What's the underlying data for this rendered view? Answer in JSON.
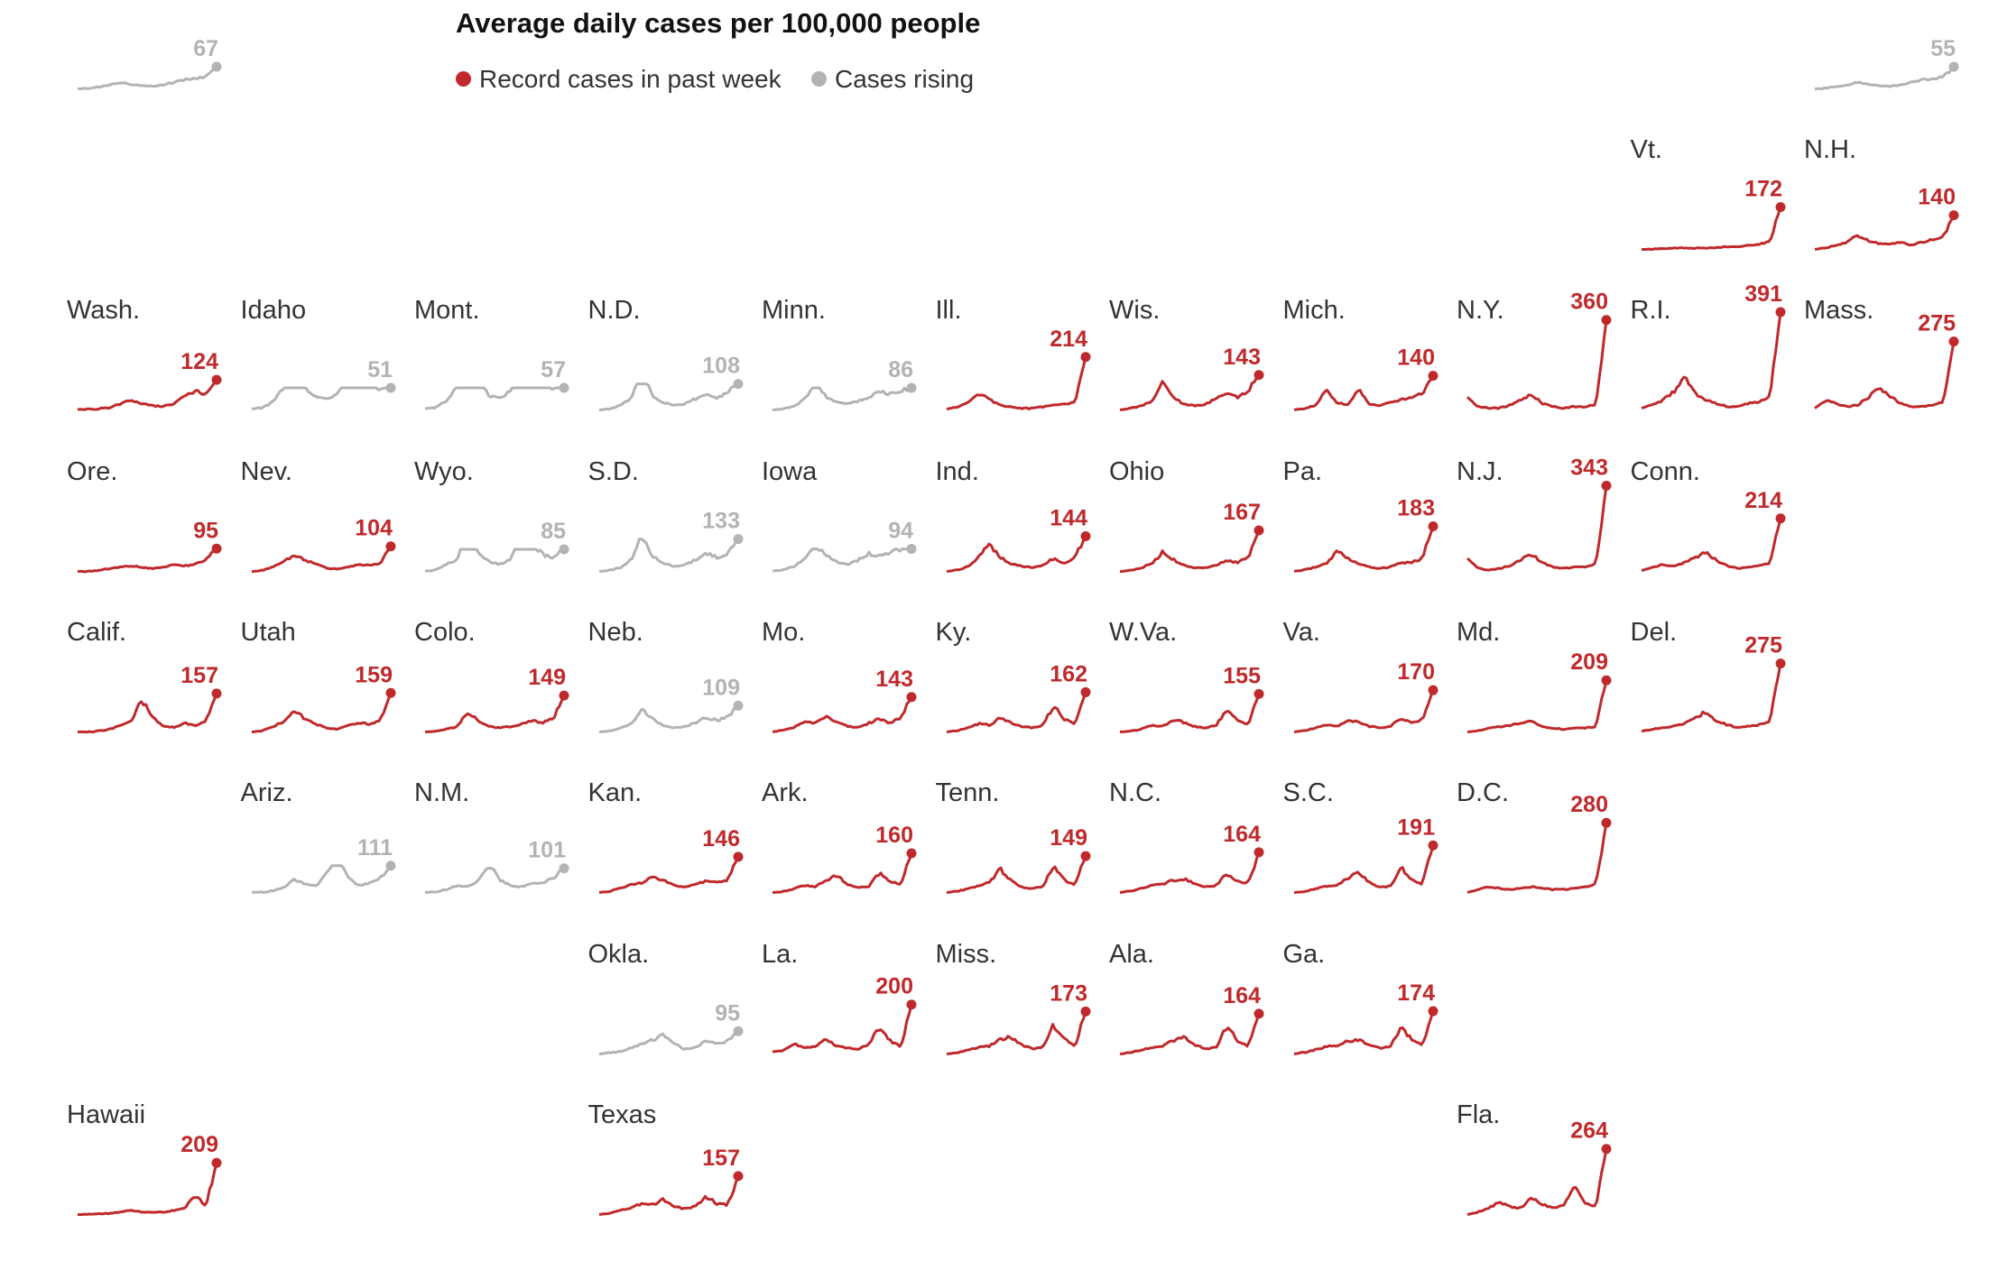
{
  "chart_data": {
    "type": "line",
    "title": "Average daily cases per 100,000 people",
    "legend": [
      {
        "key": "record",
        "label": "Record cases in past week",
        "color": "#c0292b"
      },
      {
        "key": "rising",
        "label": "Cases rising",
        "color": "#b3b3b3"
      }
    ],
    "legend_placement": "top",
    "layout": "tile-grid-map",
    "states": [
      {
        "name": "",
        "value": 67,
        "status": "rising",
        "col": 0,
        "row": 0
      },
      {
        "name": "",
        "value": 55,
        "status": "rising",
        "col": 10,
        "row": 0
      },
      {
        "name": "Vt.",
        "value": 172,
        "status": "record",
        "col": 9,
        "row": 1
      },
      {
        "name": "N.H.",
        "value": 140,
        "status": "record",
        "col": 10,
        "row": 1
      },
      {
        "name": "Wash.",
        "value": 124,
        "status": "record",
        "col": 0,
        "row": 2
      },
      {
        "name": "Idaho",
        "value": 51,
        "status": "rising",
        "col": 1,
        "row": 2
      },
      {
        "name": "Mont.",
        "value": 57,
        "status": "rising",
        "col": 2,
        "row": 2
      },
      {
        "name": "N.D.",
        "value": 108,
        "status": "rising",
        "col": 3,
        "row": 2
      },
      {
        "name": "Minn.",
        "value": 86,
        "status": "rising",
        "col": 4,
        "row": 2
      },
      {
        "name": "Ill.",
        "value": 214,
        "status": "record",
        "col": 5,
        "row": 2
      },
      {
        "name": "Wis.",
        "value": 143,
        "status": "record",
        "col": 6,
        "row": 2
      },
      {
        "name": "Mich.",
        "value": 140,
        "status": "record",
        "col": 7,
        "row": 2
      },
      {
        "name": "N.Y.",
        "value": 360,
        "status": "record",
        "col": 8,
        "row": 2
      },
      {
        "name": "R.I.",
        "value": 391,
        "status": "record",
        "col": 9,
        "row": 2
      },
      {
        "name": "Mass.",
        "value": 275,
        "status": "record",
        "col": 10,
        "row": 2
      },
      {
        "name": "Ore.",
        "value": 95,
        "status": "record",
        "col": 0,
        "row": 3
      },
      {
        "name": "Nev.",
        "value": 104,
        "status": "record",
        "col": 1,
        "row": 3
      },
      {
        "name": "Wyo.",
        "value": 85,
        "status": "rising",
        "col": 2,
        "row": 3
      },
      {
        "name": "S.D.",
        "value": 133,
        "status": "rising",
        "col": 3,
        "row": 3
      },
      {
        "name": "Iowa",
        "value": 94,
        "status": "rising",
        "col": 4,
        "row": 3
      },
      {
        "name": "Ind.",
        "value": 144,
        "status": "record",
        "col": 5,
        "row": 3
      },
      {
        "name": "Ohio",
        "value": 167,
        "status": "record",
        "col": 6,
        "row": 3
      },
      {
        "name": "Pa.",
        "value": 183,
        "status": "record",
        "col": 7,
        "row": 3
      },
      {
        "name": "N.J.",
        "value": 343,
        "status": "record",
        "col": 8,
        "row": 3
      },
      {
        "name": "Conn.",
        "value": 214,
        "status": "record",
        "col": 9,
        "row": 3
      },
      {
        "name": "Calif.",
        "value": 157,
        "status": "record",
        "col": 0,
        "row": 4
      },
      {
        "name": "Utah",
        "value": 159,
        "status": "record",
        "col": 1,
        "row": 4
      },
      {
        "name": "Colo.",
        "value": 149,
        "status": "record",
        "col": 2,
        "row": 4
      },
      {
        "name": "Neb.",
        "value": 109,
        "status": "rising",
        "col": 3,
        "row": 4
      },
      {
        "name": "Mo.",
        "value": 143,
        "status": "record",
        "col": 4,
        "row": 4
      },
      {
        "name": "Ky.",
        "value": 162,
        "status": "record",
        "col": 5,
        "row": 4
      },
      {
        "name": "W.Va.",
        "value": 155,
        "status": "record",
        "col": 6,
        "row": 4
      },
      {
        "name": "Va.",
        "value": 170,
        "status": "record",
        "col": 7,
        "row": 4
      },
      {
        "name": "Md.",
        "value": 209,
        "status": "record",
        "col": 8,
        "row": 4
      },
      {
        "name": "Del.",
        "value": 275,
        "status": "record",
        "col": 9,
        "row": 4
      },
      {
        "name": "Ariz.",
        "value": 111,
        "status": "rising",
        "col": 1,
        "row": 5
      },
      {
        "name": "N.M.",
        "value": 101,
        "status": "rising",
        "col": 2,
        "row": 5
      },
      {
        "name": "Kan.",
        "value": 146,
        "status": "record",
        "col": 3,
        "row": 5
      },
      {
        "name": "Ark.",
        "value": 160,
        "status": "record",
        "col": 4,
        "row": 5
      },
      {
        "name": "Tenn.",
        "value": 149,
        "status": "record",
        "col": 5,
        "row": 5
      },
      {
        "name": "N.C.",
        "value": 164,
        "status": "record",
        "col": 6,
        "row": 5
      },
      {
        "name": "S.C.",
        "value": 191,
        "status": "record",
        "col": 7,
        "row": 5
      },
      {
        "name": "D.C.",
        "value": 280,
        "status": "record",
        "col": 8,
        "row": 5
      },
      {
        "name": "Okla.",
        "value": 95,
        "status": "rising",
        "col": 3,
        "row": 6
      },
      {
        "name": "La.",
        "value": 200,
        "status": "record",
        "col": 4,
        "row": 6
      },
      {
        "name": "Miss.",
        "value": 173,
        "status": "record",
        "col": 5,
        "row": 6
      },
      {
        "name": "Ala.",
        "value": 164,
        "status": "record",
        "col": 6,
        "row": 6
      },
      {
        "name": "Ga.",
        "value": 174,
        "status": "record",
        "col": 7,
        "row": 6
      },
      {
        "name": "Hawaii",
        "value": 209,
        "status": "record",
        "col": 0,
        "row": 7
      },
      {
        "name": "Texas",
        "value": 157,
        "status": "record",
        "col": 3,
        "row": 7
      },
      {
        "name": "Fla.",
        "value": 264,
        "status": "record",
        "col": 8,
        "row": 7
      }
    ],
    "profiles": {
      "Wash.": [
        2,
        2,
        3,
        4,
        8,
        12,
        8,
        6,
        5,
        8,
        16,
        22,
        18,
        34
      ],
      "Idaho": [
        2,
        3,
        8,
        22,
        34,
        20,
        12,
        10,
        14,
        30,
        38,
        26,
        18,
        20
      ],
      "Mont.": [
        2,
        3,
        8,
        20,
        44,
        22,
        12,
        10,
        16,
        42,
        34,
        20,
        18,
        18
      ],
      "N.D.": [
        2,
        4,
        10,
        22,
        66,
        26,
        14,
        10,
        12,
        20,
        26,
        20,
        30,
        44
      ],
      "Minn.": [
        2,
        4,
        8,
        18,
        46,
        22,
        14,
        12,
        16,
        22,
        30,
        26,
        32,
        36
      ],
      "Ill.": [
        3,
        6,
        12,
        24,
        16,
        8,
        6,
        4,
        4,
        6,
        8,
        10,
        12,
        74
      ],
      "Wis.": [
        2,
        4,
        8,
        14,
        42,
        20,
        10,
        8,
        10,
        18,
        24,
        20,
        30,
        52
      ],
      "Mich.": [
        2,
        4,
        8,
        28,
        12,
        8,
        30,
        10,
        8,
        12,
        16,
        18,
        24,
        48
      ],
      "N.Y.": [
        18,
        6,
        4,
        4,
        8,
        14,
        22,
        10,
        6,
        4,
        6,
        6,
        8,
        116
      ],
      "R.I.": [
        4,
        8,
        14,
        24,
        44,
        22,
        14,
        10,
        6,
        6,
        10,
        12,
        18,
        124
      ],
      "Mass.": [
        4,
        14,
        10,
        6,
        8,
        18,
        30,
        20,
        10,
        6,
        6,
        8,
        12,
        90
      ],
      "Ore.": [
        2,
        2,
        3,
        6,
        8,
        10,
        8,
        6,
        8,
        12,
        10,
        12,
        18,
        34
      ],
      "Nev.": [
        2,
        4,
        10,
        18,
        30,
        22,
        14,
        8,
        6,
        10,
        14,
        12,
        16,
        44
      ],
      "Wyo.": [
        2,
        3,
        10,
        16,
        56,
        24,
        14,
        10,
        16,
        44,
        36,
        22,
        18,
        28
      ],
      "S.D.": [
        2,
        4,
        8,
        20,
        58,
        26,
        14,
        10,
        12,
        20,
        30,
        24,
        30,
        52
      ],
      "Iowa": [
        2,
        4,
        8,
        18,
        36,
        22,
        14,
        10,
        16,
        24,
        20,
        26,
        30,
        30
      ],
      "Ind.": [
        2,
        4,
        10,
        24,
        44,
        24,
        14,
        10,
        8,
        12,
        22,
        14,
        24,
        56
      ],
      "Ohio": [
        2,
        4,
        8,
        16,
        34,
        22,
        12,
        8,
        8,
        12,
        22,
        16,
        26,
        70
      ],
      "Pa.": [
        2,
        4,
        8,
        12,
        30,
        20,
        12,
        8,
        6,
        8,
        14,
        14,
        20,
        64
      ],
      "N.J.": [
        20,
        6,
        4,
        6,
        10,
        18,
        26,
        14,
        8,
        6,
        8,
        8,
        12,
        120
      ],
      "Conn.": [
        3,
        8,
        12,
        10,
        14,
        22,
        30,
        18,
        10,
        6,
        8,
        10,
        14,
        78
      ],
      "Calif.": [
        2,
        2,
        3,
        6,
        10,
        16,
        46,
        22,
        10,
        8,
        14,
        10,
        16,
        54
      ],
      "Utah": [
        2,
        4,
        10,
        18,
        32,
        22,
        14,
        8,
        6,
        12,
        16,
        14,
        18,
        60
      ],
      "Colo.": [
        2,
        3,
        6,
        10,
        32,
        18,
        10,
        8,
        10,
        14,
        18,
        16,
        22,
        56
      ],
      "Neb.": [
        2,
        4,
        8,
        14,
        38,
        22,
        12,
        8,
        10,
        16,
        24,
        20,
        24,
        42
      ],
      "Mo.": [
        2,
        4,
        8,
        16,
        14,
        24,
        16,
        10,
        8,
        14,
        20,
        14,
        22,
        50
      ],
      "Ky.": [
        2,
        4,
        8,
        14,
        12,
        22,
        16,
        10,
        8,
        12,
        40,
        20,
        14,
        60
      ],
      "W.Va.": [
        2,
        3,
        6,
        12,
        10,
        20,
        16,
        10,
        8,
        12,
        36,
        18,
        14,
        58
      ],
      "Va.": [
        2,
        4,
        8,
        12,
        10,
        18,
        16,
        10,
        8,
        10,
        22,
        14,
        20,
        62
      ],
      "Md.": [
        2,
        4,
        8,
        10,
        12,
        16,
        18,
        10,
        8,
        6,
        8,
        8,
        10,
        80
      ],
      "Del.": [
        3,
        6,
        8,
        10,
        14,
        22,
        30,
        18,
        12,
        8,
        10,
        12,
        16,
        98
      ],
      "Ariz.": [
        2,
        2,
        4,
        8,
        18,
        12,
        10,
        26,
        50,
        20,
        10,
        14,
        20,
        36
      ],
      "N.M.": [
        2,
        3,
        6,
        12,
        10,
        18,
        44,
        20,
        12,
        10,
        14,
        16,
        22,
        36
      ],
      "Kan.": [
        2,
        4,
        8,
        14,
        16,
        26,
        20,
        12,
        10,
        14,
        18,
        16,
        20,
        54
      ],
      "Ark.": [
        2,
        4,
        8,
        14,
        12,
        22,
        30,
        16,
        10,
        12,
        34,
        20,
        16,
        66
      ],
      "Tenn.": [
        2,
        4,
        8,
        12,
        18,
        38,
        20,
        10,
        8,
        12,
        44,
        22,
        14,
        58
      ],
      "N.C.": [
        2,
        4,
        8,
        12,
        14,
        20,
        22,
        14,
        10,
        12,
        30,
        18,
        16,
        60
      ],
      "S.C.": [
        2,
        4,
        8,
        12,
        14,
        24,
        34,
        18,
        10,
        12,
        42,
        22,
        16,
        76
      ],
      "D.C.": [
        2,
        6,
        10,
        8,
        6,
        8,
        10,
        8,
        6,
        6,
        8,
        10,
        14,
        100
      ],
      "Okla.": [
        2,
        4,
        6,
        12,
        18,
        24,
        32,
        18,
        10,
        12,
        24,
        20,
        22,
        38
      ],
      "La.": [
        6,
        8,
        20,
        12,
        14,
        26,
        16,
        12,
        10,
        18,
        46,
        24,
        14,
        84
      ],
      "Miss.": [
        2,
        4,
        8,
        12,
        14,
        24,
        28,
        16,
        10,
        12,
        46,
        24,
        14,
        66
      ],
      "Ala.": [
        2,
        4,
        8,
        12,
        14,
        22,
        28,
        16,
        10,
        12,
        44,
        22,
        14,
        62
      ],
      "Ga.": [
        2,
        4,
        8,
        12,
        14,
        20,
        22,
        16,
        10,
        12,
        40,
        22,
        14,
        62
      ],
      "Vt.": [
        2,
        2,
        3,
        4,
        4,
        4,
        4,
        5,
        6,
        6,
        8,
        10,
        14,
        66
      ],
      "N.H.": [
        2,
        4,
        8,
        12,
        22,
        14,
        10,
        10,
        12,
        8,
        12,
        16,
        20,
        50
      ],
      "Hawaii": [
        2,
        2,
        3,
        4,
        6,
        8,
        6,
        6,
        6,
        8,
        12,
        30,
        16,
        80
      ],
      "Texas": [
        2,
        4,
        8,
        12,
        18,
        16,
        24,
        14,
        10,
        14,
        28,
        18,
        16,
        58
      ],
      "Fla.": [
        2,
        6,
        12,
        22,
        14,
        12,
        28,
        18,
        12,
        16,
        46,
        20,
        14,
        104
      ]
    }
  }
}
